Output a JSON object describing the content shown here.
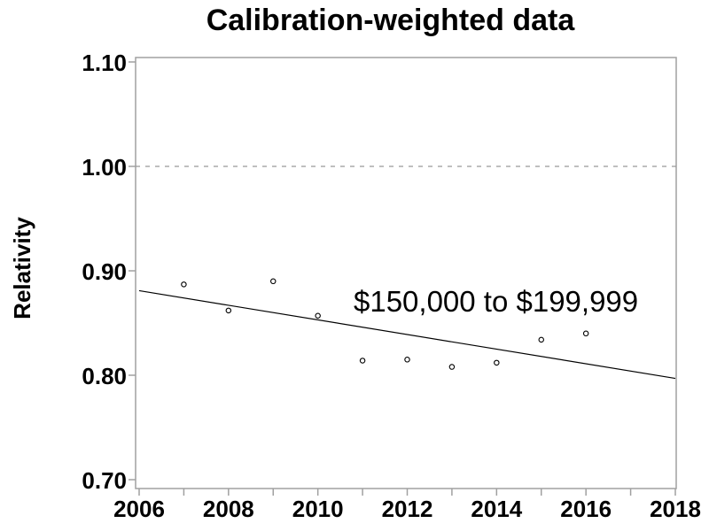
{
  "chart_data": {
    "type": "scatter",
    "title": "Calibration-weighted data",
    "xlabel": "",
    "ylabel": "Relativity",
    "x": [
      2007,
      2008,
      2009,
      2010,
      2011,
      2012,
      2013,
      2014,
      2015,
      2016
    ],
    "values": [
      0.887,
      0.862,
      0.89,
      0.857,
      0.814,
      0.815,
      0.808,
      0.812,
      0.834,
      0.84
    ],
    "marker": "open-circle",
    "trendline": {
      "x1": 2006,
      "y1": 0.881,
      "x2": 2018,
      "y2": 0.797
    },
    "reference_line": {
      "value": 1.0,
      "style": "dashed"
    },
    "annotation": {
      "text": "$150,000 to $199,999",
      "x": 2010.8,
      "y": 0.871
    },
    "xlim": [
      2006,
      2018
    ],
    "ylim": [
      0.7,
      1.1
    ],
    "x_ticks": [
      2006,
      2007,
      2008,
      2009,
      2010,
      2011,
      2012,
      2013,
      2014,
      2015,
      2016,
      2017,
      2018
    ],
    "x_tick_labels": [
      "2006",
      "2008",
      "2010",
      "2012",
      "2014",
      "2016",
      "2018"
    ],
    "y_ticks": [
      0.7,
      0.8,
      0.9,
      1.0,
      1.1
    ],
    "y_tick_labels": [
      "0.70",
      "0.80",
      "0.90",
      "1.00",
      "1.10"
    ],
    "grid": false,
    "legend": "none",
    "colors": {
      "background": "#ffffff",
      "frame": "#a0a0a0",
      "tick_marks": "#a0a0a0",
      "reference_line": "#999999",
      "trend_line": "#000000",
      "marker_stroke": "#000000",
      "text": "#000000"
    }
  }
}
